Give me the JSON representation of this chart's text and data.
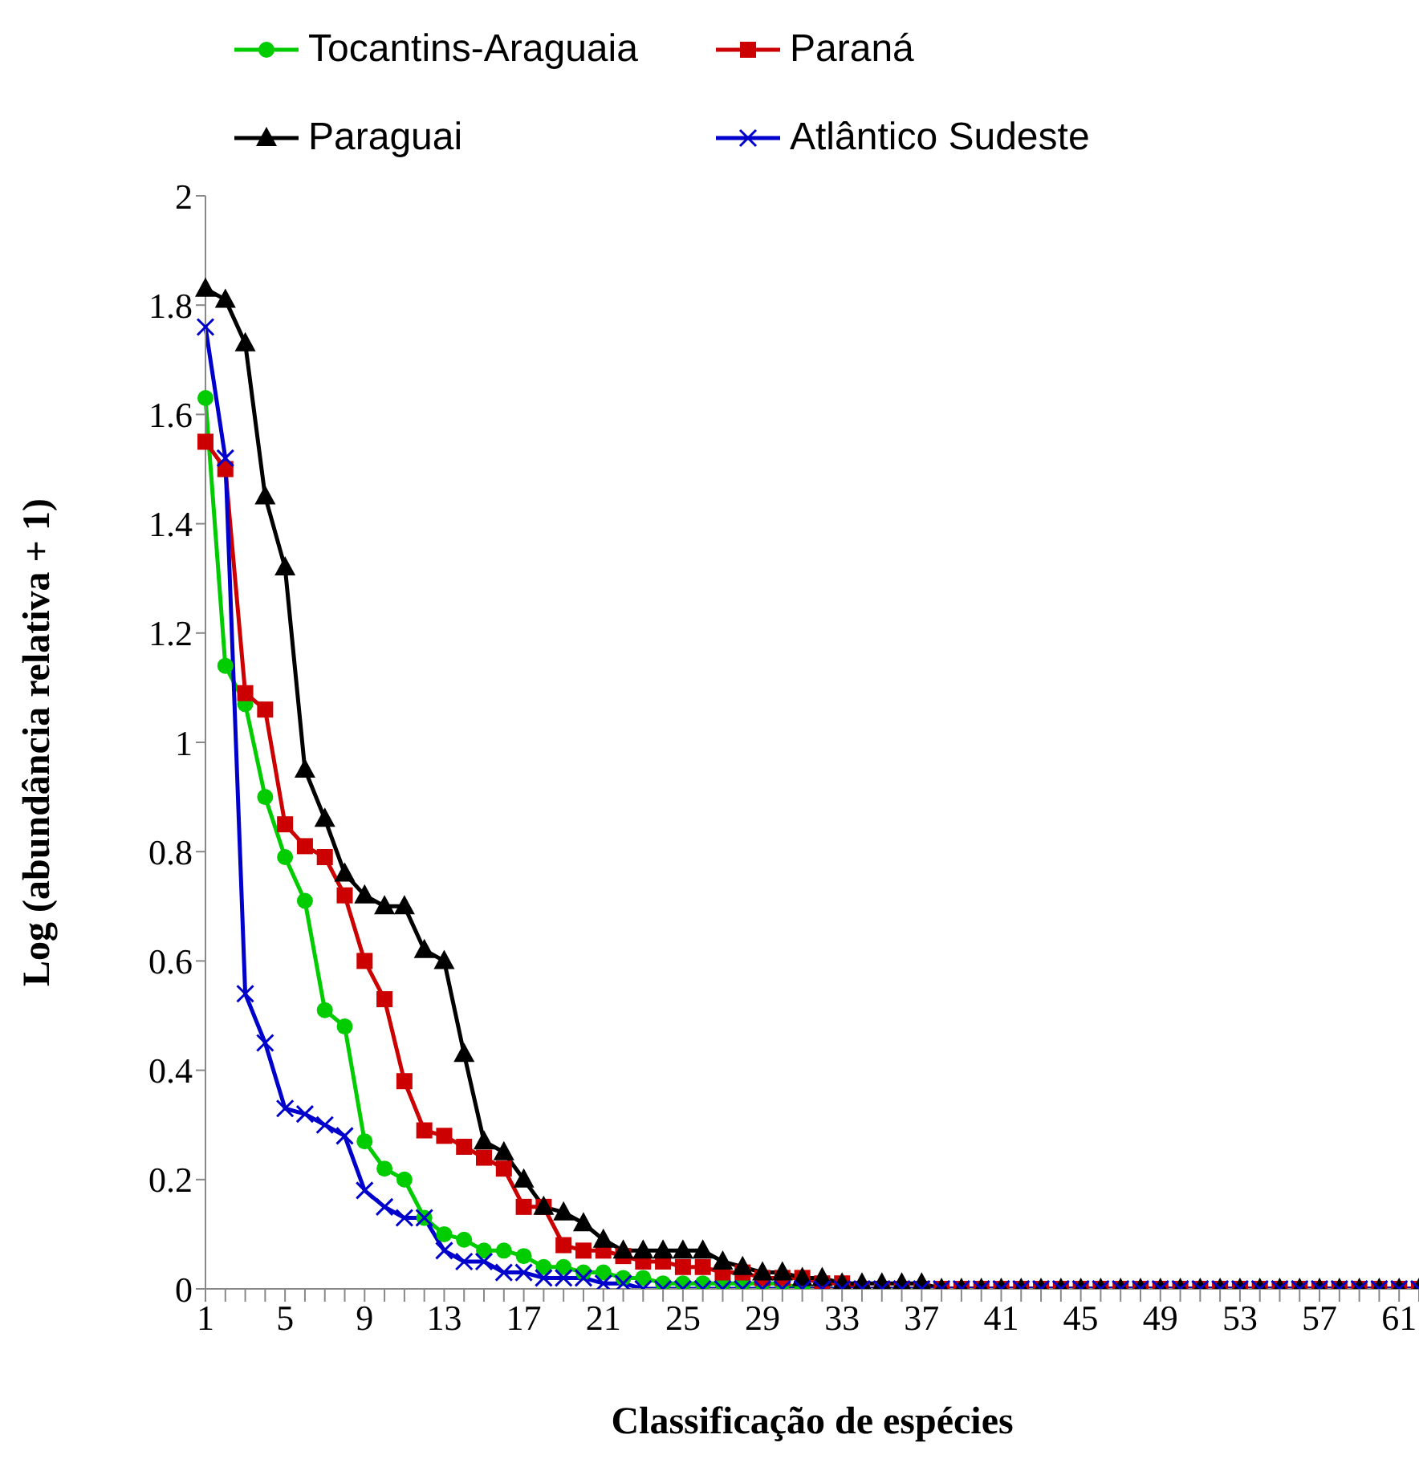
{
  "chart_data": {
    "type": "line",
    "xlabel": "Classificação de espécies",
    "ylabel": "Log (abundância relativa + 1)",
    "categories": [
      "1",
      null,
      null,
      null,
      "5",
      null,
      null,
      null,
      "9",
      null,
      null,
      null,
      "13",
      null,
      null,
      null,
      "17",
      null,
      null,
      null,
      "21",
      null,
      null,
      null,
      "25",
      null,
      null,
      null,
      "29",
      null,
      null,
      null,
      "33",
      null,
      null,
      null,
      "37",
      null,
      null,
      null,
      "41",
      null,
      null,
      null,
      "45",
      null,
      null,
      null,
      "49",
      null,
      null,
      null,
      "53",
      null,
      null,
      null,
      "57",
      null,
      null,
      null,
      "61",
      null
    ],
    "ylim": [
      0,
      2
    ],
    "yticks": [
      0,
      0.2,
      0.4,
      0.6,
      0.8,
      {
        "value": 1,
        "label": "1"
      },
      1.2,
      1.4,
      1.6,
      1.8,
      {
        "value": 2,
        "label": "2"
      }
    ],
    "grid": false,
    "legend": "top",
    "line_style": "solid",
    "series": [
      {
        "name": "Tocantins-Araguaia",
        "color": "#00cc00",
        "marker": "circle",
        "values": [
          1.63,
          1.14,
          1.07,
          0.9,
          0.79,
          0.71,
          0.51,
          0.48,
          0.27,
          0.22,
          0.2,
          0.13,
          0.1,
          0.09,
          0.07,
          0.07,
          0.06,
          0.04,
          0.04,
          0.03,
          0.03,
          0.02,
          0.02,
          0.01,
          0.01,
          0.01,
          0.01,
          0.01,
          0.01,
          0.01,
          0,
          0,
          0,
          null,
          null,
          null,
          null,
          null,
          null,
          null,
          null,
          null,
          null,
          null,
          null,
          null,
          null,
          null,
          null,
          null,
          null,
          null,
          null,
          null,
          null,
          null,
          null,
          null,
          null,
          null,
          null,
          null
        ]
      },
      {
        "name": "Paraná",
        "color": "#cc0000",
        "marker": "square",
        "values": [
          1.55,
          1.5,
          1.09,
          1.06,
          0.85,
          0.81,
          0.79,
          0.72,
          0.6,
          0.53,
          0.38,
          0.29,
          0.28,
          0.26,
          0.24,
          0.22,
          0.15,
          0.15,
          0.08,
          0.07,
          0.07,
          0.06,
          0.05,
          0.05,
          0.04,
          0.04,
          0.03,
          0.03,
          0.02,
          0.02,
          0.02,
          0.01,
          0.01,
          0,
          0,
          0,
          0,
          0,
          0,
          0,
          0,
          0,
          0,
          0,
          0,
          0,
          0,
          0,
          0,
          0,
          0,
          0,
          0,
          0,
          0,
          0,
          0,
          0,
          0,
          0,
          0,
          0
        ]
      },
      {
        "name": "Paraguai",
        "color": "#000000",
        "marker": "triangle",
        "values": [
          1.83,
          1.81,
          1.73,
          1.45,
          1.32,
          0.95,
          0.86,
          0.76,
          0.72,
          0.7,
          0.7,
          0.62,
          0.6,
          0.43,
          0.27,
          0.25,
          0.2,
          0.15,
          0.14,
          0.12,
          0.09,
          0.07,
          0.07,
          0.07,
          0.07,
          0.07,
          0.05,
          0.04,
          0.03,
          0.03,
          0.02,
          0.02,
          0.01,
          0.01,
          0.01,
          0.01,
          0.01,
          0,
          0,
          0,
          0,
          0,
          0,
          0,
          0,
          0,
          0,
          0,
          0,
          0,
          0,
          0,
          0,
          0,
          0,
          0,
          0,
          0,
          0,
          0,
          0,
          0
        ]
      },
      {
        "name": "Atlântico Sudeste",
        "color": "#0000cc",
        "marker": "cross",
        "values": [
          1.76,
          1.52,
          0.54,
          0.45,
          0.33,
          0.32,
          0.3,
          0.28,
          0.18,
          0.15,
          0.13,
          0.13,
          0.07,
          0.05,
          0.05,
          0.03,
          0.03,
          0.02,
          0.02,
          0.02,
          0.01,
          0.01,
          0,
          0,
          0,
          0,
          0,
          0,
          0,
          0,
          0,
          0,
          0,
          0,
          0,
          0,
          0,
          0,
          0,
          0,
          0,
          0,
          0,
          0,
          0,
          0,
          0,
          0,
          0,
          0,
          0,
          0,
          0,
          0,
          0,
          0,
          0,
          0,
          0,
          0,
          0,
          0
        ]
      }
    ]
  }
}
